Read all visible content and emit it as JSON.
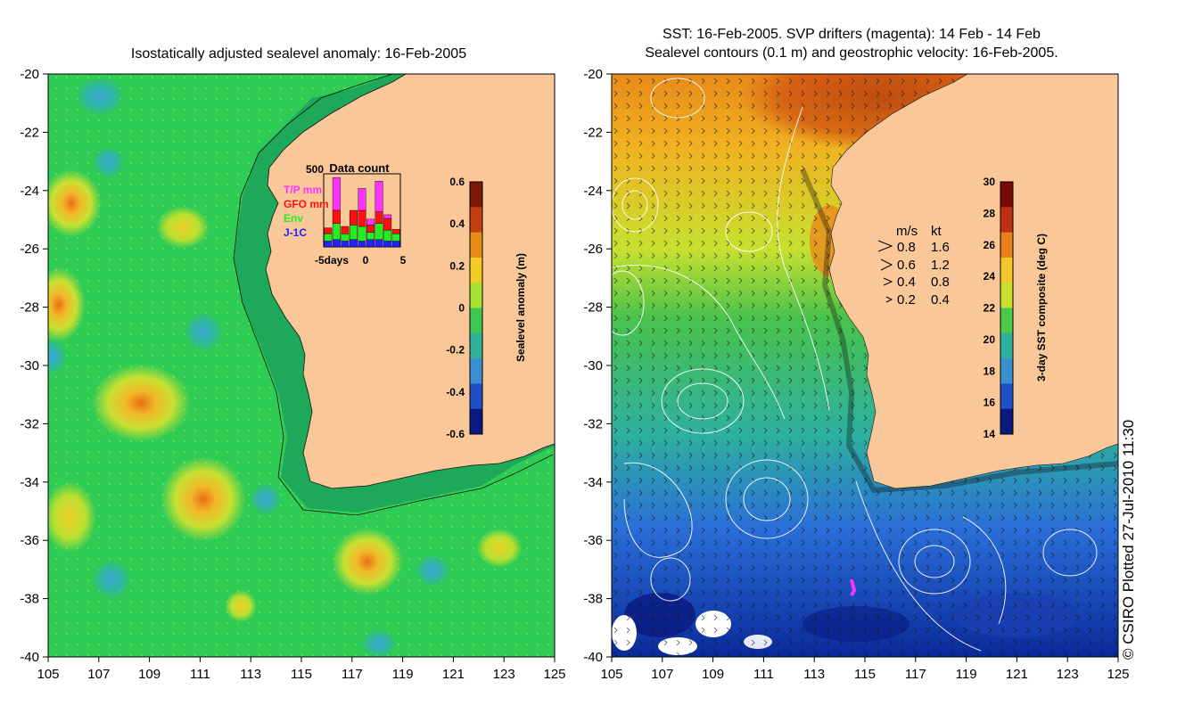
{
  "left_panel": {
    "title": "Isostatically adjusted sealevel anomaly: 16-Feb-2005",
    "x_ticks": [
      "105",
      "107",
      "109",
      "111",
      "113",
      "115",
      "117",
      "119",
      "121",
      "123",
      "125"
    ],
    "y_ticks": [
      "-20",
      "-22",
      "-24",
      "-26",
      "-28",
      "-30",
      "-32",
      "-34",
      "-36",
      "-38",
      "-40"
    ],
    "colorbar": {
      "label": "Sealevel anomaly (m)",
      "ticks": [
        "0.6",
        "0.4",
        "0.2",
        "0",
        "-0.2",
        "-0.4",
        "-0.6"
      ],
      "colors": [
        "#7a1a05",
        "#c0400f",
        "#e88a1a",
        "#f2cd28",
        "#a8e032",
        "#3cc850",
        "#2eb09a",
        "#3a8fd2",
        "#2050c8",
        "#0a1a80"
      ]
    },
    "data_count": {
      "title": "Data count",
      "ymax": "500",
      "legend": [
        {
          "label": "T/P mm",
          "color": "#ff33ff"
        },
        {
          "label": "GFO mm",
          "color": "#ff1010"
        },
        {
          "label": "Env",
          "color": "#22ee22"
        },
        {
          "label": "J-1C",
          "color": "#2222ff"
        }
      ],
      "x_labels": [
        "-5days",
        "0",
        "5"
      ],
      "bars": [
        {
          "jc": 0.08,
          "env": 0.1,
          "gfo": 0.08,
          "tp": 0.0
        },
        {
          "jc": 0.1,
          "env": 0.22,
          "gfo": 0.18,
          "tp": 0.45
        },
        {
          "jc": 0.08,
          "env": 0.1,
          "gfo": 0.1,
          "tp": 0.0
        },
        {
          "jc": 0.1,
          "env": 0.2,
          "gfo": 0.2,
          "tp": 0.0
        },
        {
          "jc": 0.08,
          "env": 0.2,
          "gfo": 0.22,
          "tp": 0.3
        },
        {
          "jc": 0.1,
          "env": 0.1,
          "gfo": 0.1,
          "tp": 0.08
        },
        {
          "jc": 0.1,
          "env": 0.22,
          "gfo": 0.16,
          "tp": 0.42
        },
        {
          "jc": 0.08,
          "env": 0.15,
          "gfo": 0.16,
          "tp": 0.05
        },
        {
          "jc": 0.08,
          "env": 0.1,
          "gfo": 0.06,
          "tp": 0.0
        }
      ]
    }
  },
  "right_panel": {
    "title_line1": "SST: 16-Feb-2005. SVP drifters (magenta): 14 Feb - 14 Feb",
    "title_line2": "Sealevel contours (0.1 m) and geostrophic velocity: 16-Feb-2005.",
    "x_ticks": [
      "105",
      "107",
      "109",
      "111",
      "113",
      "115",
      "117",
      "119",
      "121",
      "123",
      "125"
    ],
    "y_ticks": [
      "-20",
      "-22",
      "-24",
      "-26",
      "-28",
      "-30",
      "-32",
      "-34",
      "-36",
      "-38",
      "-40"
    ],
    "colorbar": {
      "label": "3-day SST composite (deg C)",
      "ticks": [
        "30",
        "28",
        "26",
        "24",
        "22",
        "20",
        "18",
        "16",
        "14"
      ],
      "colors": [
        "#7a0a05",
        "#c0300f",
        "#e8801a",
        "#f2c828",
        "#c8e030",
        "#4cc84a",
        "#2eb0a0",
        "#3a8fd2",
        "#2050c8",
        "#0a1a80"
      ]
    },
    "velocity_legend": {
      "header_ms": "m/s",
      "header_kt": "kt",
      "rows": [
        {
          "ms": "0.8",
          "kt": "1.6"
        },
        {
          "ms": "0.6",
          "kt": "1.2"
        },
        {
          "ms": "0.4",
          "kt": "0.8"
        },
        {
          "ms": "0.2",
          "kt": "0.4"
        }
      ]
    }
  },
  "credit": "© CSIRO Plotted 27-Jul-2010 11:30",
  "colors": {
    "land": "#fac898",
    "ocean_base": "#2ecb55",
    "contour": "#ffffff"
  }
}
